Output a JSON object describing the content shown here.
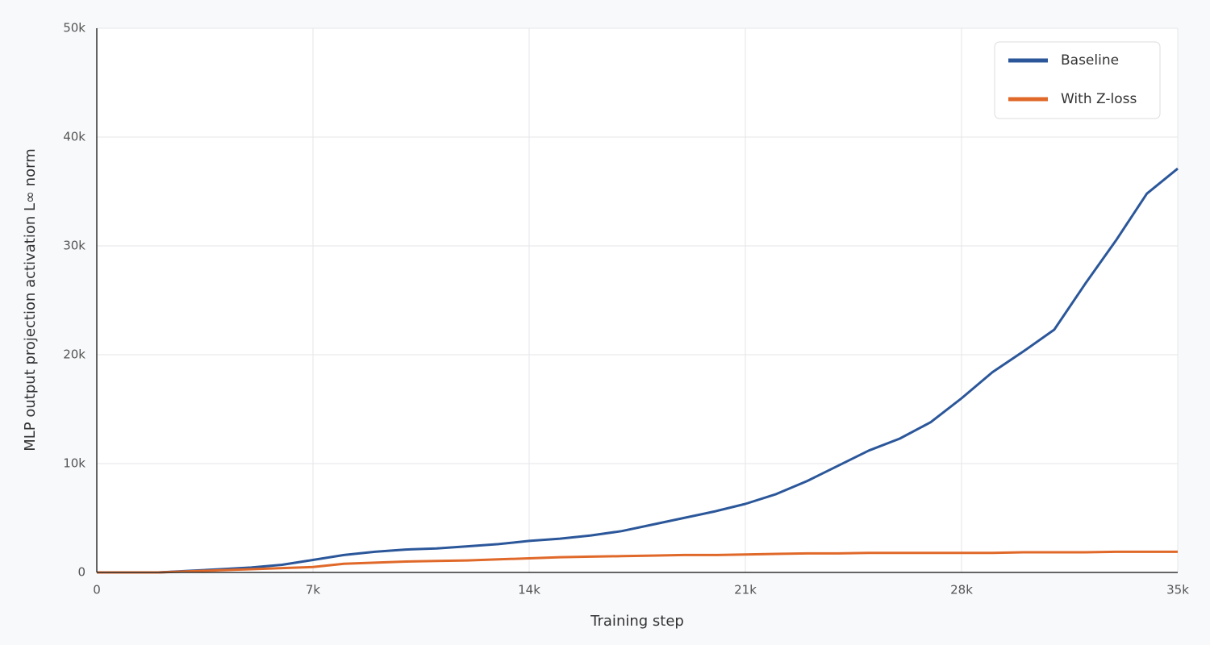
{
  "chart_data": {
    "type": "line",
    "xlabel": "Training step",
    "ylabel": "MLP output projection activation L∞ norm",
    "x": [
      0,
      1000,
      2000,
      3000,
      4000,
      5000,
      6000,
      7000,
      8000,
      9000,
      10000,
      11000,
      12000,
      13000,
      14000,
      15000,
      16000,
      17000,
      18000,
      19000,
      20000,
      21000,
      22000,
      23000,
      24000,
      25000,
      26000,
      27000,
      28000,
      29000,
      30000,
      31000,
      32000,
      33000,
      34000,
      35000
    ],
    "series": [
      {
        "name": "Baseline",
        "color": "#2b579a",
        "values": [
          0,
          0,
          0,
          150,
          300,
          450,
          700,
          1150,
          1600,
          1900,
          2100,
          2200,
          2400,
          2600,
          2900,
          3100,
          3400,
          3800,
          4400,
          5000,
          5600,
          6300,
          7200,
          8400,
          9800,
          11200,
          12300,
          13800,
          16000,
          18400,
          20300,
          22300,
          26500,
          30500,
          34800,
          37100
        ]
      },
      {
        "name": "With Z-loss",
        "color": "#e0692a",
        "values": [
          0,
          0,
          0,
          100,
          200,
          300,
          400,
          500,
          800,
          900,
          1000,
          1050,
          1100,
          1200,
          1300,
          1400,
          1450,
          1500,
          1550,
          1600,
          1600,
          1650,
          1700,
          1750,
          1750,
          1800,
          1800,
          1800,
          1800,
          1800,
          1850,
          1850,
          1850,
          1900,
          1900,
          1900
        ]
      }
    ],
    "xlim": [
      0,
      35000
    ],
    "xticks": [
      0,
      {
        "value": 7000,
        "label": "7k"
      },
      {
        "value": 14000,
        "label": "14k"
      },
      {
        "value": 21000,
        "label": "21k"
      },
      {
        "value": 28000,
        "label": "28k"
      },
      {
        "value": 35000,
        "label": "35k"
      }
    ],
    "ylim": [
      0,
      50000
    ],
    "yticks": [
      0,
      {
        "value": 10000,
        "label": "10k"
      },
      {
        "value": 20000,
        "label": "20k"
      },
      {
        "value": 30000,
        "label": "30k"
      },
      {
        "value": 40000,
        "label": "40k"
      },
      {
        "value": 50000,
        "label": "50k"
      }
    ],
    "grid": true,
    "legend": "upper right"
  }
}
